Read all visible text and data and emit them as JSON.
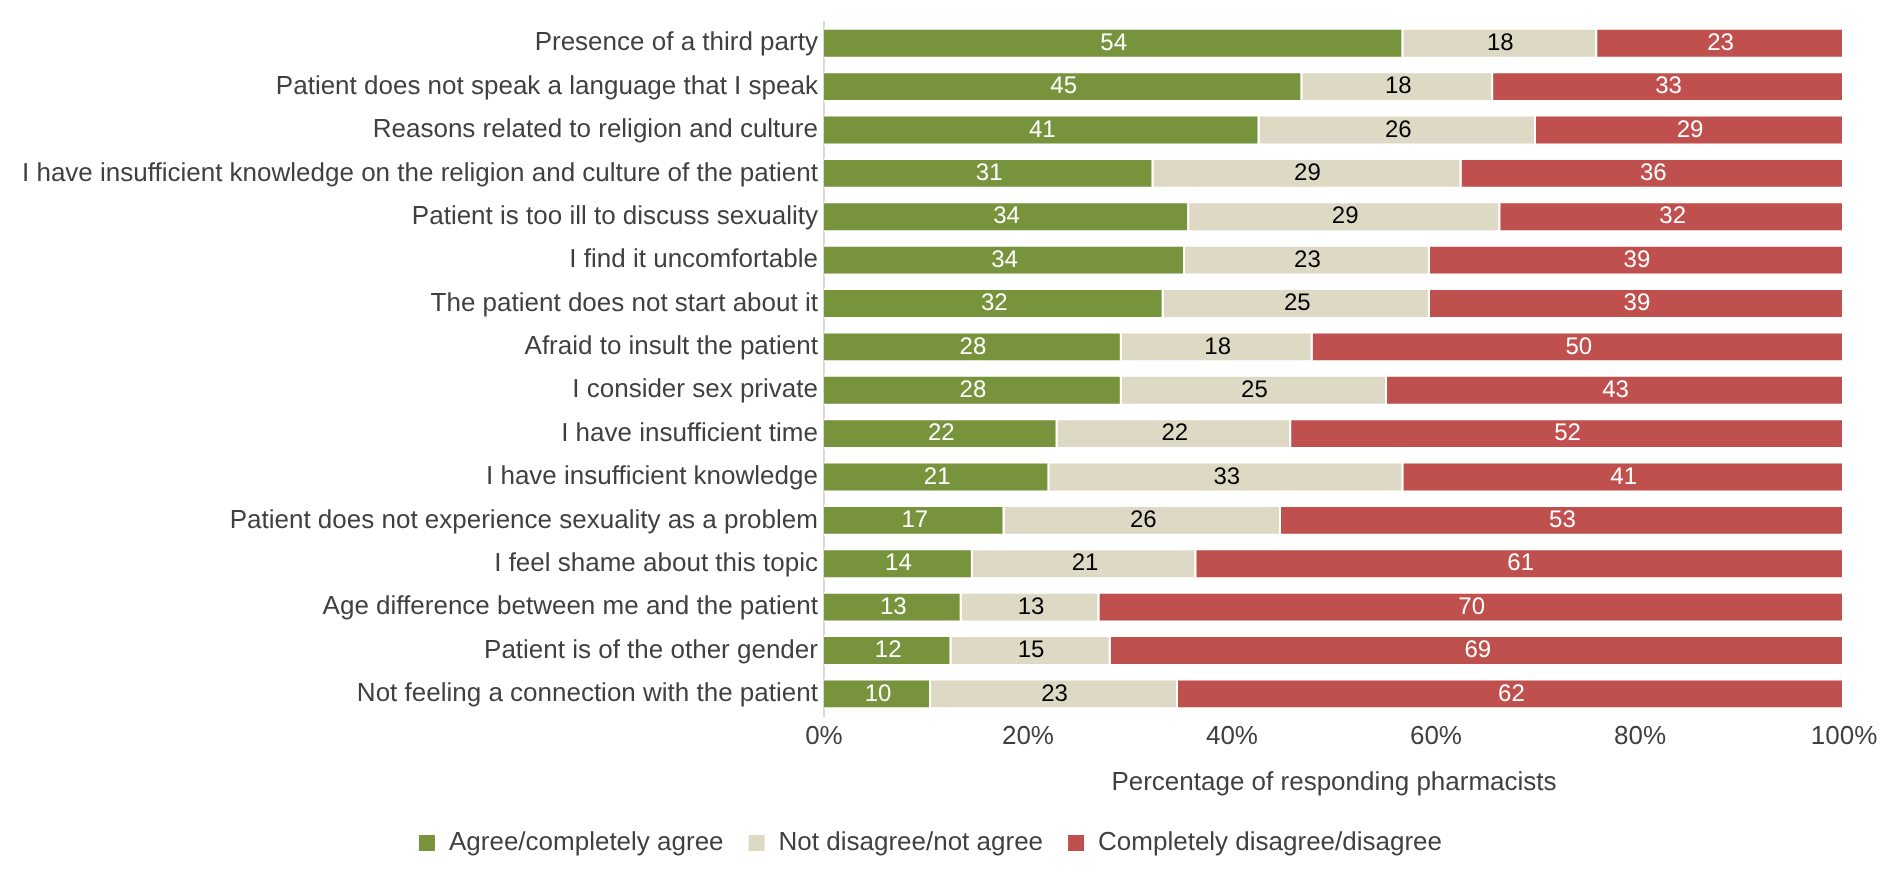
{
  "chart_data": {
    "type": "bar",
    "orientation": "horizontal",
    "stacked": true,
    "categories": [
      "Presence of a third party",
      "Patient does not speak a language that I speak",
      "Reasons related to religion and culture",
      "I have insufficient knowledge on the religion and culture of the patient",
      "Patient is too ill to discuss sexuality",
      "I find it uncomfortable",
      "The patient does not start about it",
      "Afraid to insult the patient",
      "I consider sex private",
      "I have insufficient time",
      "I have insufficient knowledge",
      "Patient does not experience sexuality as a problem",
      "I feel shame about this topic",
      "Age difference between me and the patient",
      "Patient is of the other gender",
      "Not feeling a connection with the patient"
    ],
    "series": [
      {
        "name": "Agree/completely agree",
        "color": "#77933c",
        "values": [
          56.8,
          46.9,
          42.7,
          32.3,
          35.8,
          35.4,
          33.3,
          29.2,
          29.2,
          22.9,
          22.1,
          17.7,
          14.6,
          13.5,
          12.5,
          10.5
        ]
      },
      {
        "name": "Not disagree/not agree",
        "color": "#ddd9c4",
        "values": [
          19.0,
          18.7,
          27.1,
          30.2,
          30.5,
          24.0,
          26.1,
          18.7,
          26.0,
          22.9,
          34.7,
          27.1,
          21.9,
          13.5,
          15.6,
          24.2
        ]
      },
      {
        "name": "Completely disagree/disagree",
        "color": "#c0504d",
        "values": [
          24.2,
          34.4,
          30.2,
          37.5,
          33.7,
          40.6,
          40.6,
          52.1,
          44.8,
          54.2,
          43.2,
          55.2,
          63.5,
          73.0,
          71.9,
          65.3
        ]
      }
    ],
    "annotations": [
      {
        "text": "54",
        "x": 28.4,
        "y": "Presence of a third party"
      },
      {
        "text": "18",
        "x": 66.3,
        "y": "Presence of a third party"
      },
      {
        "text": "23",
        "x": 87.9,
        "y": "Presence of a third party"
      },
      {
        "text": "45",
        "x": 23.5,
        "y": "Patient does not speak a language that I speak"
      },
      {
        "text": "18",
        "x": 56.3,
        "y": "Patient does not speak a language that I speak"
      },
      {
        "text": "33",
        "x": 82.8,
        "y": "Patient does not speak a language that I speak"
      },
      {
        "text": "41",
        "x": 21.4,
        "y": "Reasons related to religion and culture"
      },
      {
        "text": "26",
        "x": 56.3,
        "y": "Reasons related to religion and culture"
      },
      {
        "text": "29",
        "x": 84.9,
        "y": "Reasons related to religion and culture"
      },
      {
        "text": "31",
        "x": 16.2,
        "y": "I have insufficient knowledge on the religion and culture of the patient"
      },
      {
        "text": "29",
        "x": 47.4,
        "y": "I have insufficient knowledge on the religion and culture of the patient"
      },
      {
        "text": "36",
        "x": 81.3,
        "y": "I have insufficient knowledge on the religion and culture of the patient"
      },
      {
        "text": "34",
        "x": 17.9,
        "y": "Patient is too ill to discuss sexuality"
      },
      {
        "text": "29",
        "x": 51.1,
        "y": "Patient is too ill to discuss sexuality"
      },
      {
        "text": "32",
        "x": 83.2,
        "y": "Patient is too ill to discuss sexuality"
      },
      {
        "text": "34",
        "x": 17.7,
        "y": "I find it uncomfortable"
      },
      {
        "text": "23",
        "x": 47.4,
        "y": "I find it uncomfortable"
      },
      {
        "text": "39",
        "x": 79.7,
        "y": "I find it uncomfortable"
      },
      {
        "text": "32",
        "x": 16.7,
        "y": "The patient does not start about it"
      },
      {
        "text": "25",
        "x": 46.4,
        "y": "The patient does not start about it"
      },
      {
        "text": "39",
        "x": 79.7,
        "y": "The patient does not start about it"
      },
      {
        "text": "28",
        "x": 14.6,
        "y": "Afraid to insult the patient"
      },
      {
        "text": "18",
        "x": 38.6,
        "y": "Afraid to insult the patient"
      },
      {
        "text": "50",
        "x": 74.0,
        "y": "Afraid to insult the patient"
      },
      {
        "text": "28",
        "x": 14.6,
        "y": "I consider sex private"
      },
      {
        "text": "25",
        "x": 42.2,
        "y": "I consider sex private"
      },
      {
        "text": "43",
        "x": 77.6,
        "y": "I consider sex private"
      },
      {
        "text": "22",
        "x": 11.5,
        "y": "I have insufficient time"
      },
      {
        "text": "22",
        "x": 34.4,
        "y": "I have insufficient time"
      },
      {
        "text": "52",
        "x": 72.9,
        "y": "I have insufficient time"
      },
      {
        "text": "21",
        "x": 11.1,
        "y": "I have insufficient knowledge"
      },
      {
        "text": "33",
        "x": 39.5,
        "y": "I have insufficient knowledge"
      },
      {
        "text": "41",
        "x": 78.4,
        "y": "I have insufficient knowledge"
      },
      {
        "text": "17",
        "x": 8.9,
        "y": "Patient does not experience sexuality as a problem"
      },
      {
        "text": "26",
        "x": 31.3,
        "y": "Patient does not experience sexuality as a problem"
      },
      {
        "text": "53",
        "x": 72.4,
        "y": "Patient does not experience sexuality as a problem"
      },
      {
        "text": "14",
        "x": 7.3,
        "y": "I feel shame about this topic"
      },
      {
        "text": "21",
        "x": 25.6,
        "y": "I feel shame about this topic"
      },
      {
        "text": "61",
        "x": 68.3,
        "y": "I feel shame about this topic"
      },
      {
        "text": "13",
        "x": 6.8,
        "y": "Age difference between me and the patient"
      },
      {
        "text": "13",
        "x": 20.3,
        "y": "Age difference between me and the patient"
      },
      {
        "text": "70",
        "x": 63.5,
        "y": "Age difference between me and the patient"
      },
      {
        "text": "12",
        "x": 6.3,
        "y": "Patient is of the other gender"
      },
      {
        "text": "15",
        "x": 20.3,
        "y": "Patient is of the other gender"
      },
      {
        "text": "69",
        "x": 64.1,
        "y": "Patient is of the other gender"
      },
      {
        "text": "10",
        "x": 5.3,
        "y": "Not feeling a connection with the patient"
      },
      {
        "text": "23",
        "x": 22.6,
        "y": "Not feeling a connection with the patient"
      },
      {
        "text": "62",
        "x": 67.4,
        "y": "Not feeling a connection with the patient"
      }
    ],
    "xlabel": "Percentage of responding pharmacists",
    "xlim": [
      0,
      100
    ],
    "xticks": [
      {
        "value": 0,
        "label": "0%"
      },
      {
        "value": 20,
        "label": "20%"
      },
      {
        "value": 40,
        "label": "40%"
      },
      {
        "value": 60,
        "label": "60%"
      },
      {
        "value": 80,
        "label": "80%"
      },
      {
        "value": 100,
        "label": "100%"
      }
    ],
    "legend": "bottom",
    "grid": false
  }
}
